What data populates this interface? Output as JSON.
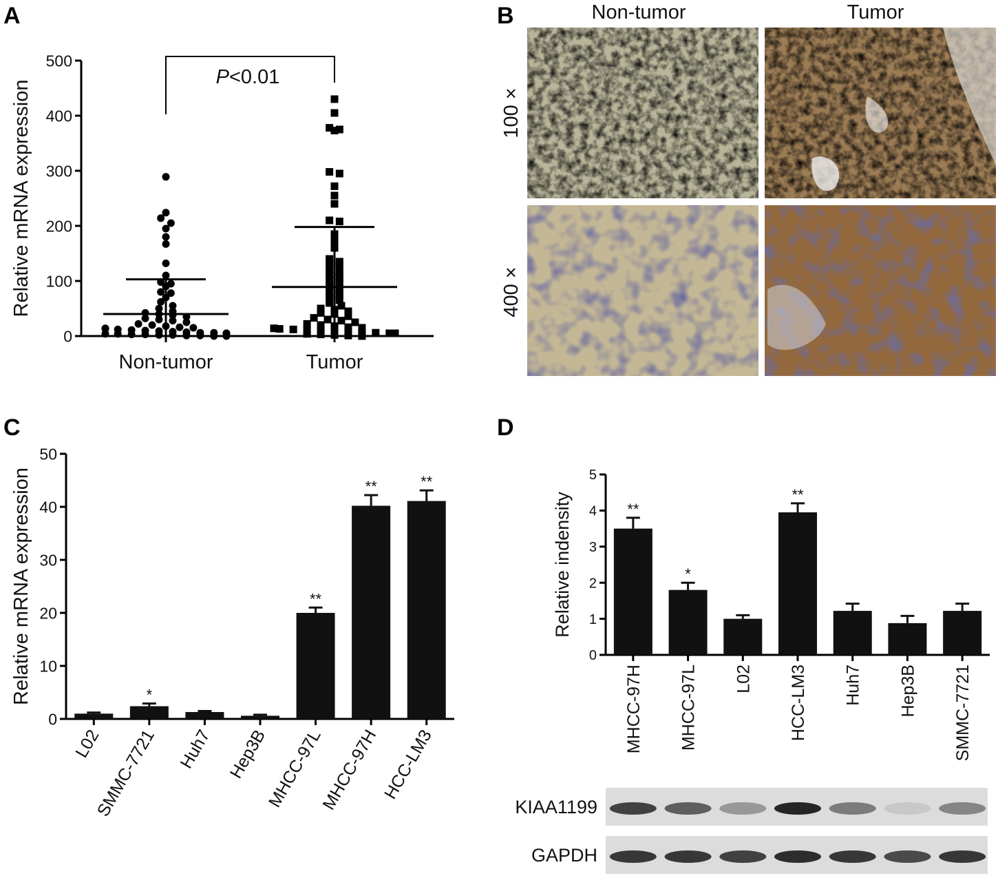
{
  "panels": {
    "a": {
      "letter": "A"
    },
    "b": {
      "letter": "B",
      "col_labels": [
        "Non-tumor",
        "Tumor"
      ],
      "row_labels": [
        "100 ×",
        "400 ×"
      ],
      "colors": {
        "non_tumor_low": "#b9b59a",
        "tumor_low": "#9c7c55",
        "non_tumor_high": "#c3b795",
        "tumor_high": "#93693d"
      }
    },
    "c": {
      "letter": "C"
    },
    "d": {
      "letter": "D",
      "blot_rows": [
        {
          "label": "KIAA1199",
          "intensity": [
            0.8,
            0.65,
            0.35,
            0.95,
            0.5,
            0.1,
            0.45
          ]
        },
        {
          "label": "GAPDH",
          "intensity": [
            0.85,
            0.85,
            0.8,
            0.9,
            0.85,
            0.75,
            0.85
          ]
        }
      ]
    }
  },
  "chart_data": [
    {
      "panel": "A",
      "type": "scatter",
      "ylabel": "Relative mRNA expression",
      "ylim": [
        0,
        500
      ],
      "yticks": [
        "0",
        "100",
        "200",
        "300",
        "400",
        "500"
      ],
      "categories": [
        "Non-tumor",
        "Tumor"
      ],
      "annotation": {
        "italic": "P",
        "text": "<0.01"
      },
      "series": [
        {
          "category": "Non-tumor",
          "marker": "circle",
          "mean": 40,
          "sd_upper": 103,
          "values": [
            289,
            224,
            214,
            205,
            195,
            180,
            167,
            132,
            110,
            98,
            95,
            90,
            80,
            78,
            70,
            62,
            55,
            50,
            45,
            42,
            40,
            38,
            35,
            32,
            30,
            28,
            25,
            22,
            20,
            18,
            16,
            15,
            14,
            13,
            12,
            11,
            10,
            9,
            8,
            7,
            6,
            6,
            5,
            5,
            4,
            4,
            3,
            3,
            2,
            2,
            1,
            1,
            0,
            0
          ]
        },
        {
          "category": "Tumor",
          "marker": "square",
          "mean": 89,
          "sd_upper": 198,
          "values": [
            430,
            405,
            378,
            375,
            373,
            298,
            295,
            272,
            255,
            240,
            210,
            208,
            185,
            175,
            168,
            160,
            140,
            135,
            130,
            128,
            120,
            115,
            110,
            105,
            100,
            97,
            92,
            85,
            80,
            75,
            70,
            65,
            60,
            55,
            50,
            48,
            45,
            42,
            40,
            36,
            33,
            30,
            28,
            25,
            22,
            20,
            18,
            16,
            15,
            14,
            13,
            12,
            11,
            10,
            9,
            8,
            7,
            6,
            5,
            5,
            4,
            3,
            2,
            1,
            0
          ]
        }
      ]
    },
    {
      "panel": "C",
      "type": "bar",
      "ylabel": "Relative mRNA expression",
      "ylim": [
        0,
        50
      ],
      "yticks": [
        "0",
        "10",
        "20",
        "30",
        "40",
        "50"
      ],
      "categories": [
        "L02",
        "SMMC-7721",
        "Huh7",
        "Hep3B",
        "MHCC-97L",
        "MHCC-97H",
        "HCC-LM3"
      ],
      "values": [
        1,
        2.4,
        1.3,
        0.6,
        20,
        40.2,
        41.1
      ],
      "errors": [
        0.2,
        0.5,
        0.2,
        0.2,
        1.0,
        2.0,
        2.0
      ],
      "significance": [
        "",
        "*",
        "",
        "",
        "**",
        "**",
        "**"
      ]
    },
    {
      "panel": "D",
      "type": "bar",
      "ylabel": "Relative indensity",
      "ylim": [
        0,
        5
      ],
      "yticks": [
        "0",
        "1",
        "2",
        "3",
        "4",
        "5"
      ],
      "categories": [
        "MHCC-97H",
        "MHCC-97L",
        "L02",
        "HCC-LM3",
        "Huh7",
        "Hep3B",
        "SMMC-7721"
      ],
      "values": [
        3.5,
        1.8,
        1.0,
        3.95,
        1.22,
        0.88,
        1.22
      ],
      "errors": [
        0.3,
        0.2,
        0.1,
        0.25,
        0.2,
        0.2,
        0.2
      ],
      "significance": [
        "**",
        "*",
        "",
        "**",
        "",
        "",
        ""
      ]
    }
  ]
}
